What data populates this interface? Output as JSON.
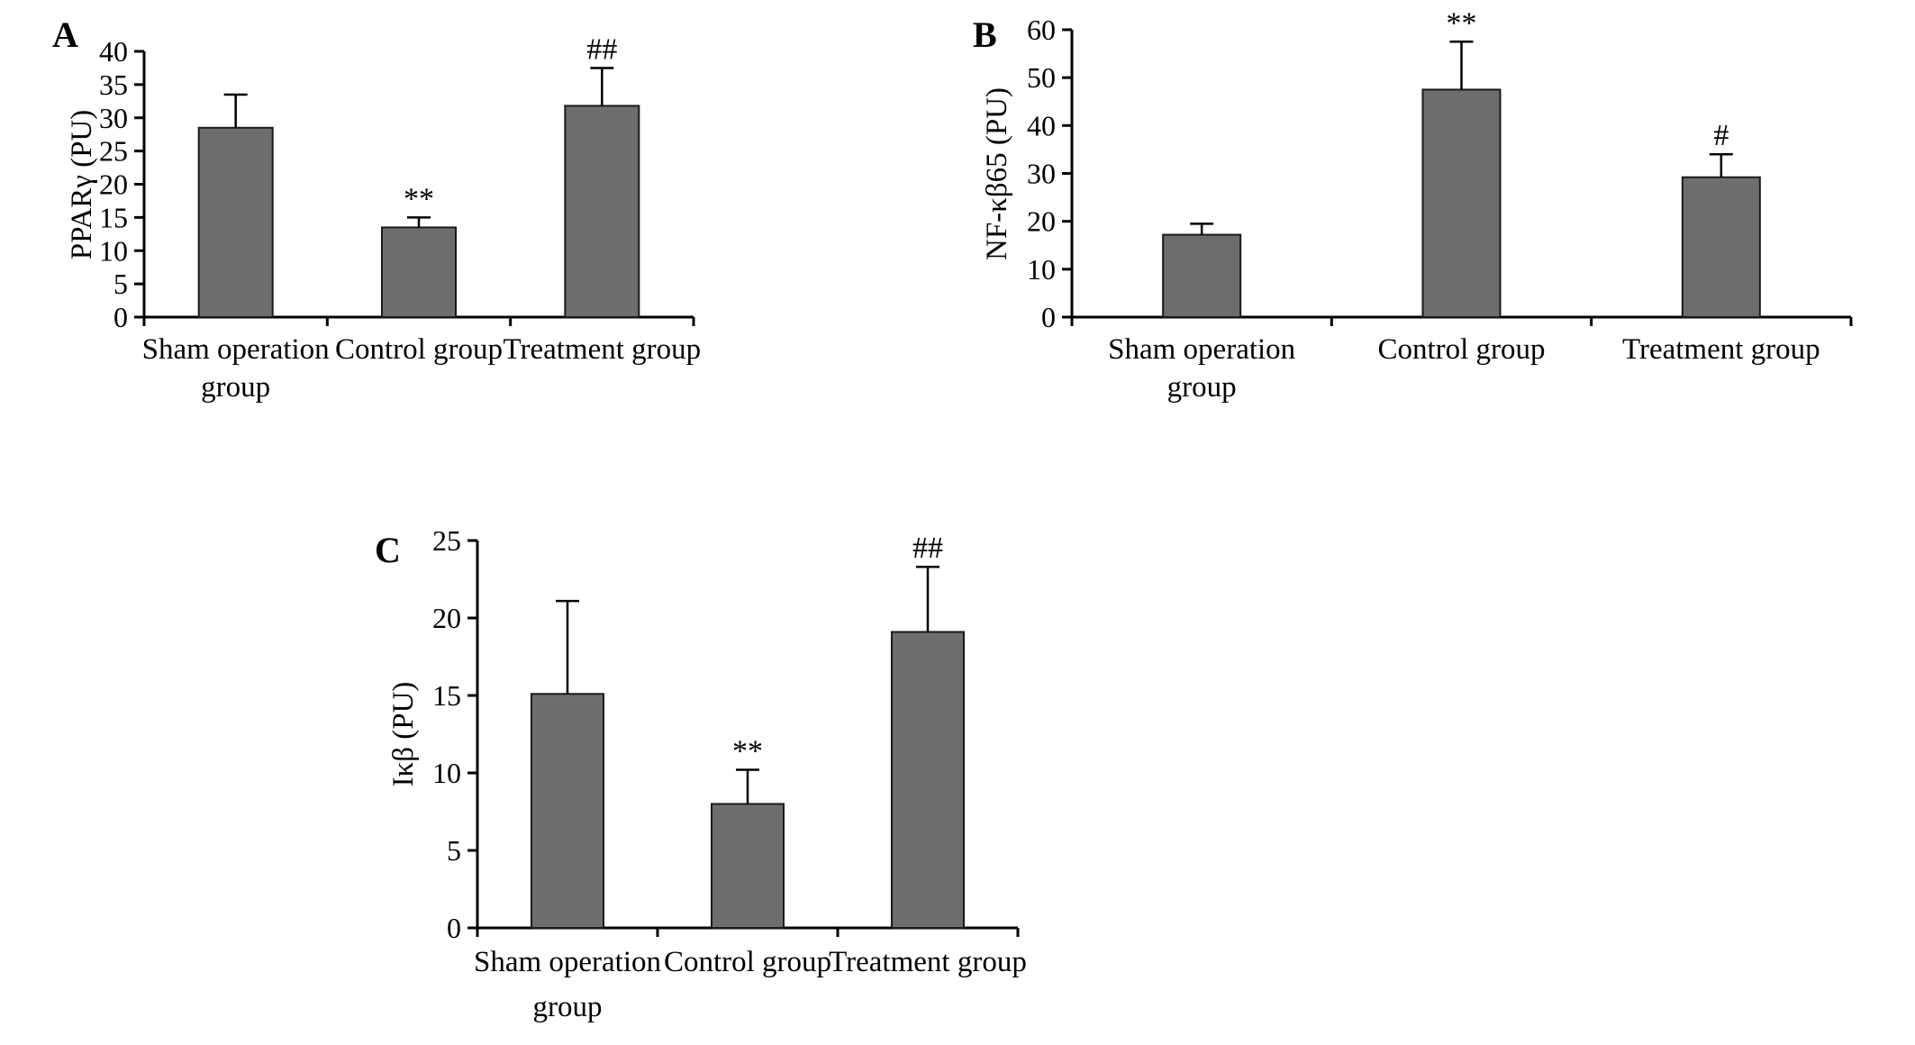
{
  "figure": {
    "background": "#ffffff",
    "bar_fill": "#6d6d6d",
    "bar_stroke": "#1a1a1a",
    "axis_color": "#000000",
    "text_color": "#000000"
  },
  "chart_data": [
    {
      "type": "bar",
      "panel_label": "A",
      "title": "",
      "ylabel": "PPARγ (PU)",
      "xlabel": "",
      "categories": [
        "Sham operation group",
        "Control group",
        "Treatment group"
      ],
      "values": [
        28.5,
        13.5,
        31.8
      ],
      "error_plus": [
        5.0,
        1.5,
        5.7
      ],
      "annotations": [
        "",
        "**",
        "##"
      ],
      "ylim": [
        0,
        40
      ],
      "ytick_step": 5,
      "grid": false,
      "legend": "none"
    },
    {
      "type": "bar",
      "panel_label": "B",
      "title": "",
      "ylabel": "NF-κβ65 (PU)",
      "xlabel": "",
      "categories": [
        "Sham operation group",
        "Control group",
        "Treatment group"
      ],
      "values": [
        17.2,
        47.5,
        29.2
      ],
      "error_plus": [
        2.3,
        10.0,
        4.8
      ],
      "annotations": [
        "",
        "**",
        "#"
      ],
      "ylim": [
        0,
        60
      ],
      "ytick_step": 10,
      "grid": false,
      "legend": "none"
    },
    {
      "type": "bar",
      "panel_label": "C",
      "title": "",
      "ylabel": "Iκβ (PU)",
      "xlabel": "",
      "categories": [
        "Sham operation group",
        "Control group",
        "Treatment group"
      ],
      "values": [
        15.1,
        8.0,
        19.1
      ],
      "error_plus": [
        6.0,
        2.2,
        4.2
      ],
      "annotations": [
        "",
        "**",
        "##"
      ],
      "ylim": [
        0,
        25
      ],
      "ytick_step": 5,
      "grid": false,
      "legend": "none"
    }
  ]
}
